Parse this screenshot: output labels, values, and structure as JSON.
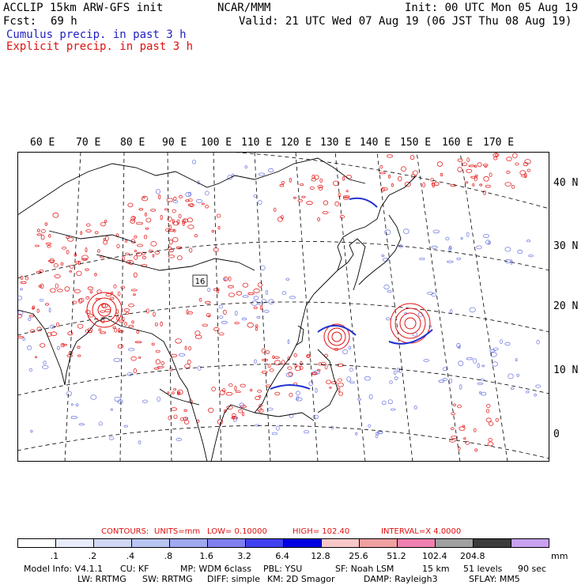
{
  "header": {
    "model": "ACCLIP 15km ARW-GFS init",
    "center": "NCAR/MMM",
    "init": "Init: 00 UTC Mon 05 Aug 19",
    "fcst_label": "Fcst:",
    "fcst_value": "69 h",
    "valid": "Valid: 21 UTC Wed 07 Aug 19 (06 JST Thu 08 Aug 19)",
    "cumulus": "Cumulus precip. in past 3 h",
    "explicit": "Explicit precip. in past 3 h"
  },
  "map": {
    "lon_labels": [
      "60 E",
      "70 E",
      "80 E",
      "90 E",
      "100 E",
      "110 E",
      "120 E",
      "130 E",
      "140 E",
      "150 E",
      "160 E",
      "170 E"
    ],
    "lat_labels": [
      "40 N",
      "30 N",
      "20 N",
      "10 N",
      "0"
    ],
    "marker": "16",
    "colors": {
      "cumulus": "#2030d0",
      "explicit": "#e01010",
      "coast": "#000000"
    }
  },
  "contours": {
    "label": "CONTOURS:",
    "units": "UNITS=mm",
    "low": "LOW= 0.10000",
    "high": "HIGH= 102.40",
    "interval": "INTERVAL=X 4.0000"
  },
  "colorbar": {
    "labels": [
      ".1",
      ".2",
      ".4",
      ".8",
      "1.6",
      "3.2",
      "6.4",
      "12.8",
      "25.6",
      "51.2",
      "102.4",
      "204.8"
    ],
    "unit": "mm",
    "colors": [
      "#ffffff",
      "#e8ecfa",
      "#d0d8f6",
      "#b8c4f2",
      "#a0a8f0",
      "#7f7ff0",
      "#4040f0",
      "#0000e0",
      "#f8c8c8",
      "#f0a0a0",
      "#f080b0",
      "#a0a0a0",
      "#3c3c3c",
      "#c8a0f0"
    ]
  },
  "footer": {
    "line1": [
      "Model Info: V4.1.1",
      "CU: KF",
      "MP: WDM 6class",
      "PBL: YSU",
      "SF: Noah LSM",
      "15 km",
      "51 levels",
      "90 sec"
    ],
    "line2": [
      "LW: RRTMG",
      "SW: RRTMG",
      "DIFF: simple",
      "KM: 2D Smagor",
      "DAMP: Rayleigh3",
      "SFLAY: MM5"
    ]
  }
}
